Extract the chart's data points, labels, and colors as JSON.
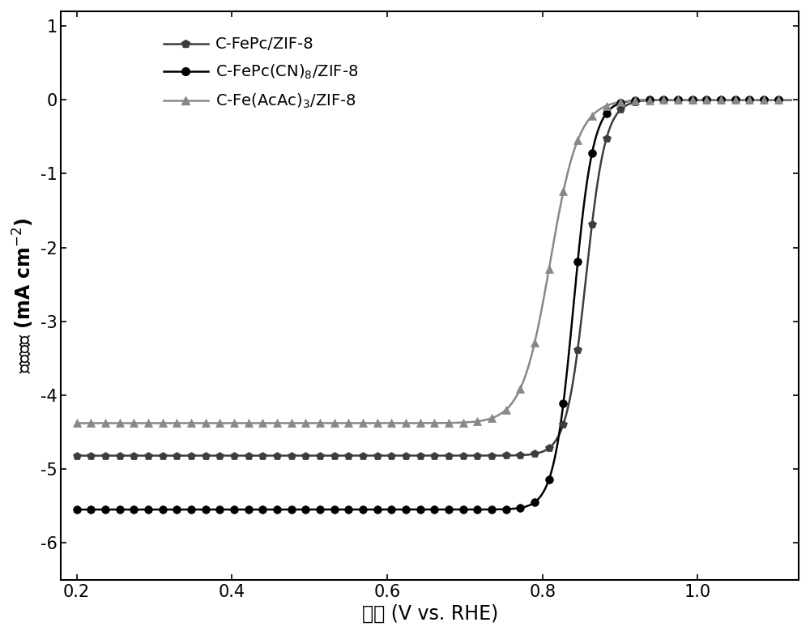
{
  "xlabel": "电位 (V vs. RHE)",
  "ylabel": "电流密度 (mA cm$^{-2}$)",
  "xlim": [
    0.18,
    1.13
  ],
  "ylim": [
    -6.5,
    1.2
  ],
  "xticks": [
    0.2,
    0.4,
    0.6,
    0.8,
    1.0
  ],
  "yticks": [
    -6,
    -5,
    -4,
    -3,
    -2,
    -1,
    0,
    1
  ],
  "series": [
    {
      "label": "C-FePc/ZIF-8",
      "color": "#3d3d3d",
      "marker": "p",
      "marker_size": 7,
      "linewidth": 1.8,
      "limiting_current": -4.82,
      "half_wave": 0.856,
      "k": 80
    },
    {
      "label": "C-FePc(CN)$_8$/ZIF-8",
      "color": "#000000",
      "marker": "o",
      "marker_size": 7,
      "linewidth": 1.8,
      "limiting_current": -5.55,
      "half_wave": 0.84,
      "k": 80
    },
    {
      "label": "C-Fe(AcAc)$_3$/ZIF-8",
      "color": "#888888",
      "marker": "^",
      "marker_size": 7,
      "linewidth": 1.8,
      "limiting_current": -4.38,
      "half_wave": 0.81,
      "k": 55
    }
  ],
  "background_color": "#ffffff",
  "legend_fontsize": 14,
  "axis_fontsize": 17,
  "tick_fontsize": 15,
  "marker_every": 10
}
